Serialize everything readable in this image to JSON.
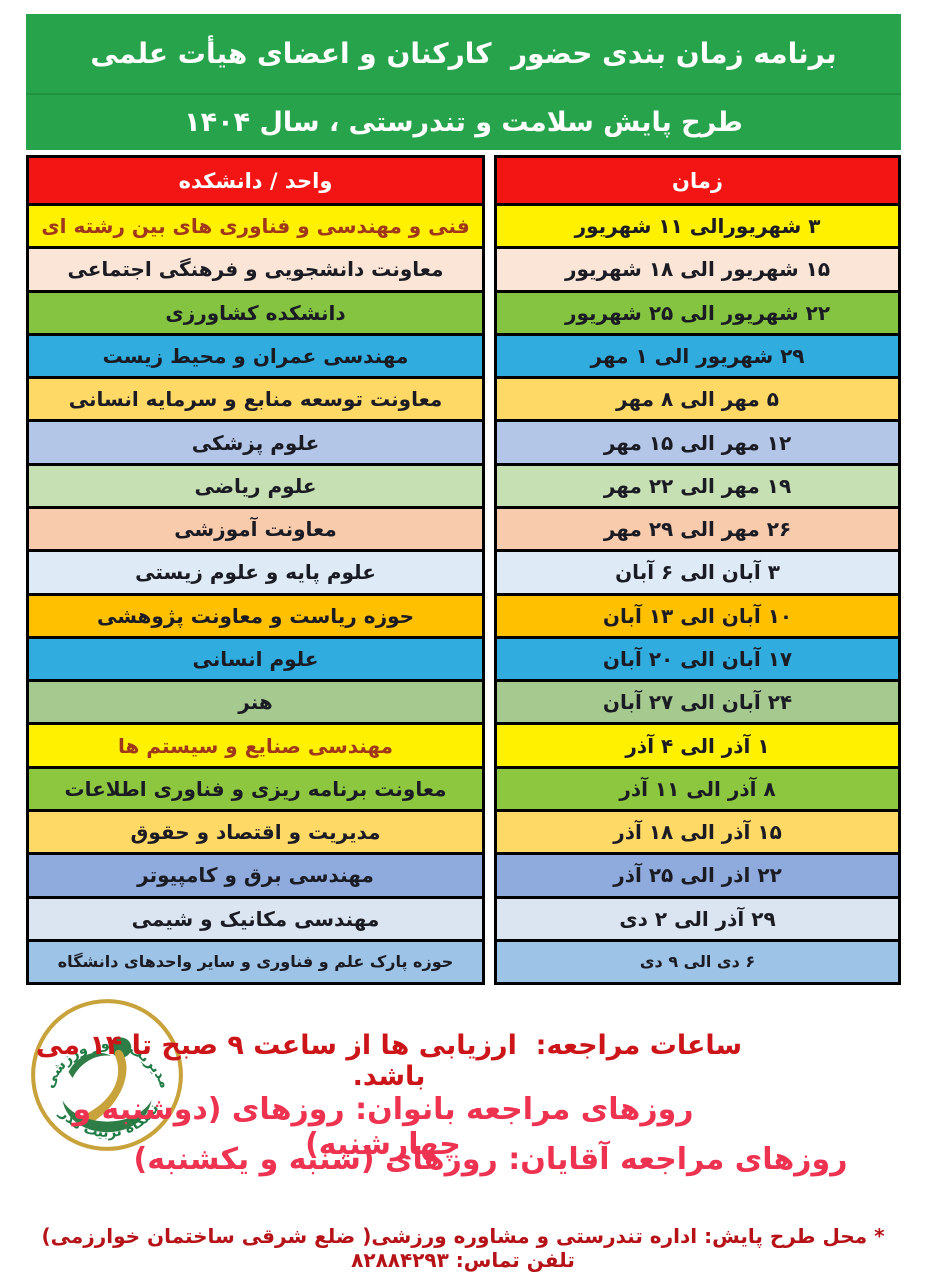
{
  "title": {
    "line1": "برنامه زمان بندی حضور  کارکنان و اعضای هیأت علمی",
    "line2": "طرح پایش سلامت و تندرستی ، سال ۱۴۰۴"
  },
  "table": {
    "headers": {
      "unit": "واحد / دانشکده",
      "time": "زمان"
    },
    "rows": [
      {
        "unit": "فنی و مهندسی و فناوری های بین رشته ای",
        "time": "۳ شهریورالی ۱۱ شهریور",
        "bg": "#FFF100",
        "unit_color": "#A0361C"
      },
      {
        "unit": "معاونت دانشجویی و فرهنگی اجتماعی",
        "time": "۱۵ شهریور الی ۱۸ شهریور",
        "bg": "#FBE5D6"
      },
      {
        "unit": "دانشکده کشاورزی",
        "time": "۲۲ شهریور الی ۲۵ شهریور",
        "bg": "#84C441"
      },
      {
        "unit": "مهندسی عمران و محیط زیست",
        "time": "۲۹ شهریور الی ۱ مهر",
        "bg": "#30ACDE"
      },
      {
        "unit": "معاونت توسعه منابع و سرمایه انسانی",
        "time": "۵ مهر الی ۸ مهر",
        "bg": "#FFD966"
      },
      {
        "unit": "علوم پزشکی",
        "time": "۱۲ مهر الی ۱۵ مهر",
        "bg": "#B4C6E7"
      },
      {
        "unit": "علوم ریاضی",
        "time": "۱۹ مهر الی ۲۲ مهر",
        "bg": "#C6E0B4"
      },
      {
        "unit": "معاونت آموزشی",
        "time": "۲۶ مهر الی ۲۹ مهر",
        "bg": "#F8CBAD"
      },
      {
        "unit": "علوم پایه و علوم زیستی",
        "time": "۳ آبان الی ۶ آبان",
        "bg": "#DEEBF7"
      },
      {
        "unit": "حوزه ریاست و  معاونت پژوهشی",
        "time": "۱۰ آبان الی ۱۳ آبان",
        "bg": "#FFC000"
      },
      {
        "unit": "علوم انسانی",
        "time": "۱۷ آبان الی ۲۰ آبان",
        "bg": "#30ACDE"
      },
      {
        "unit": "هنر",
        "time": "۲۴ آبان الی ۲۷ آبان",
        "bg": "#A6C990"
      },
      {
        "unit": "مهندسی صنایع و سیستم ها",
        "time": "۱ آذر الی ۴ آذر",
        "bg": "#FFF100",
        "unit_color": "#A0361C"
      },
      {
        "unit": "معاونت برنامه ریزی و فناوری اطلاعات",
        "time": "۸ آذر الی ۱۱ آذر",
        "bg": "#8DC63F"
      },
      {
        "unit": "مدیریت و اقتصاد و حقوق",
        "time": "۱۵ آذر الی ۱۸ آذر",
        "bg": "#FFD966"
      },
      {
        "unit": "مهندسی برق و کامپیوتر",
        "time": "۲۲ اذر الی ۲۵ آذر",
        "bg": "#8FAADC"
      },
      {
        "unit": "مهندسی مکانیک و شیمی",
        "time": "۲۹ آذر الی ۲ دی",
        "bg": "#DAE5F1"
      },
      {
        "unit": "حوزه پارک علم و فناوری و سایر واحدهای دانشگاه",
        "time": "۶ دی الی ۹ دی",
        "bg": "#9DC3E6",
        "small": true
      }
    ]
  },
  "logo": {
    "top_text": "مدیریت امور ورزشی",
    "bottom_text": "دانشگاه تربیت مدرس"
  },
  "notes": {
    "hours": "ساعات مراجعه:  ارزیابی ها از ساعت ۹ صبح تا ۱۴ می باشد.",
    "women_days": "روزهای مراجعه بانوان: روزهای (دوشنبه و چهارشنبه)",
    "men_days": "روزهای مراجعه آقایان: روزهای (شنبه و یکشنبه)"
  },
  "footer": {
    "location_line": "* محل طرح پایش: اداره تندرستی و مشاوره ورزشی( ضلع شرقی ساختمان خوارزمی)   تلفن تماس: ۸۲۸۸۴۲۹۳"
  },
  "colors": {
    "header_green": "#27A44B",
    "header_red": "#F31414",
    "note_red": "#CC1518",
    "days_pink": "#EE3350",
    "footer_red": "#B51318",
    "cell_text": "#1B1B24",
    "logo_green": "#2E7D46",
    "logo_gold": "#C8A23B"
  }
}
